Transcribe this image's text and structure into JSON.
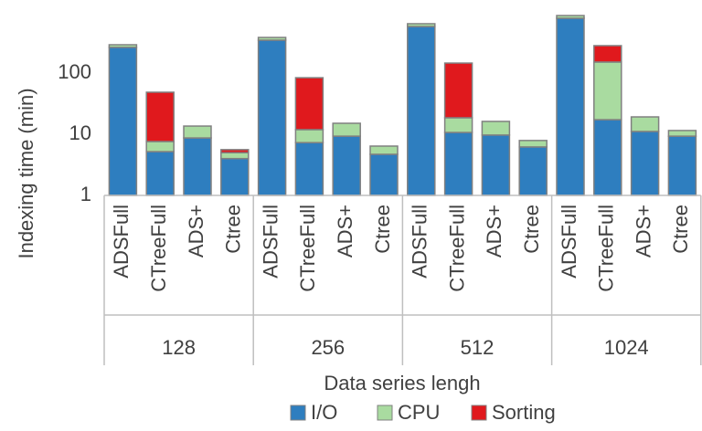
{
  "chart_data": {
    "type": "bar",
    "stacked": true,
    "log_scale": true,
    "y_label": "Indexing time (min)",
    "x_label": "Data series lengh",
    "categories": [
      "ADSFull",
      "CTreeFull",
      "ADS+",
      "Ctree",
      "ADSFull",
      "CTreeFull",
      "ADS+",
      "Ctree",
      "ADSFull",
      "CTreeFull",
      "ADS+",
      "Ctree",
      "ADSFull",
      "CTreeFull",
      "ADS+",
      "Ctree"
    ],
    "groups": [
      "128",
      "256",
      "512",
      "1024"
    ],
    "series": [
      {
        "name": "I/O",
        "color": "#2e7ebf",
        "values": [
          263,
          5.2,
          8.7,
          4.0,
          345,
          7.3,
          9.3,
          4.7,
          577,
          10.7,
          9.7,
          6.2,
          787,
          17.3,
          11.1,
          9.3
        ]
      },
      {
        "name": "CPU",
        "color": "#a9dba0",
        "values": [
          27,
          2.4,
          4.9,
          1.0,
          37,
          4.6,
          5.8,
          1.7,
          63,
          7.9,
          6.5,
          1.7,
          84,
          134,
          8.1,
          2.2
        ]
      },
      {
        "name": "Sorting",
        "color": "#e0191d",
        "values": [
          null,
          41,
          null,
          0.6,
          null,
          72,
          null,
          null,
          null,
          127,
          null,
          null,
          null,
          129,
          null,
          null
        ]
      }
    ],
    "ylim": [
      1,
      1000
    ],
    "yticks": [
      1,
      10,
      100
    ],
    "grid": false,
    "legend": "bottom"
  }
}
